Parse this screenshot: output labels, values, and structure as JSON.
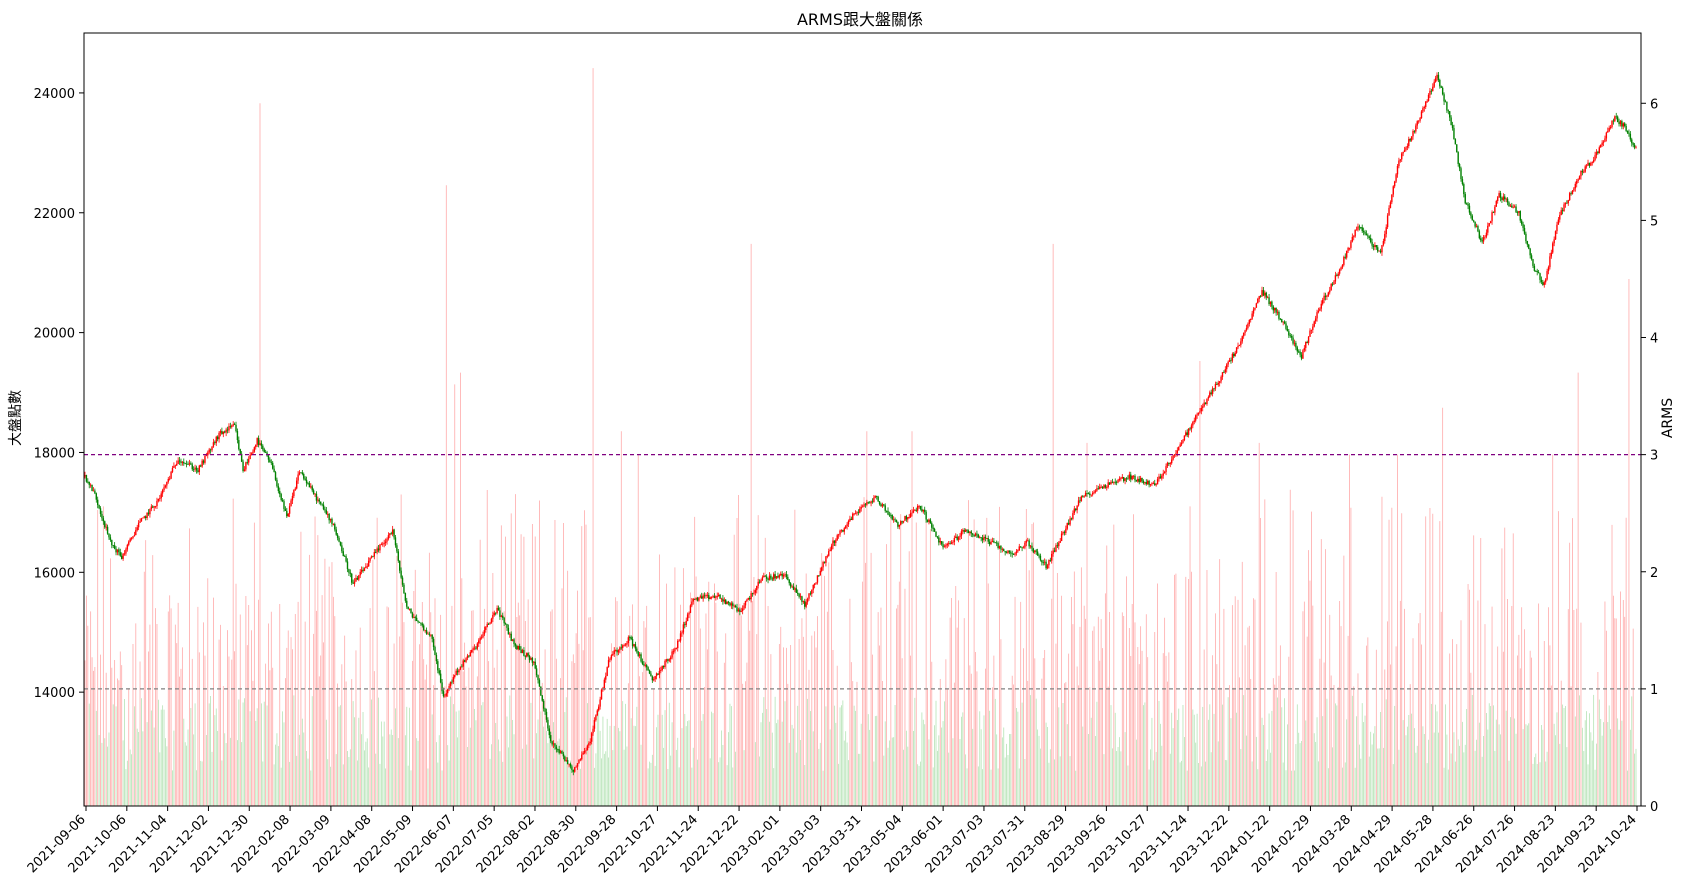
{
  "chart_data": {
    "type": "candlestick-with-bars",
    "title": "ARMS跟大盤關係",
    "ylabel_left": "大盤點數",
    "ylabel_right": "ARMS",
    "left_axis": {
      "ylim": [
        12100,
        25000
      ],
      "ticks": [
        "14000",
        "16000",
        "18000",
        "20000",
        "22000",
        "24000"
      ]
    },
    "right_axis": {
      "ylim": [
        0,
        6.6
      ],
      "ticks": [
        "0",
        "1",
        "2",
        "3",
        "4",
        "5",
        "6"
      ]
    },
    "x_tick_labels": [
      "2021-09-06",
      "2021-10-06",
      "2021-11-04",
      "2021-12-02",
      "2021-12-30",
      "2022-02-08",
      "2022-03-09",
      "2022-04-08",
      "2022-05-09",
      "2022-06-07",
      "2022-07-05",
      "2022-08-02",
      "2022-08-30",
      "2022-09-28",
      "2022-10-27",
      "2022-11-24",
      "2022-12-22",
      "2023-02-01",
      "2023-03-03",
      "2023-03-31",
      "2023-05-04",
      "2023-06-01",
      "2023-07-03",
      "2023-07-31",
      "2023-08-29",
      "2023-09-26",
      "2023-10-27",
      "2023-11-24",
      "2023-12-22",
      "2024-01-22",
      "2024-02-29",
      "2024-03-28",
      "2024-04-29",
      "2024-05-28",
      "2024-06-26",
      "2024-07-26",
      "2024-08-23",
      "2024-09-23",
      "2024-10-24"
    ],
    "reference_lines": [
      {
        "axis": "right",
        "value": 3,
        "color": "#800080",
        "style": "dashed"
      },
      {
        "axis": "right",
        "value": 1,
        "color": "#808080",
        "style": "dashed"
      }
    ],
    "index_anchors": [
      [
        0,
        17600
      ],
      [
        7,
        17300
      ],
      [
        18,
        16500
      ],
      [
        26,
        16250
      ],
      [
        38,
        16800
      ],
      [
        52,
        17200
      ],
      [
        66,
        17900
      ],
      [
        80,
        17700
      ],
      [
        95,
        18300
      ],
      [
        106,
        18450
      ],
      [
        112,
        17700
      ],
      [
        122,
        18200
      ],
      [
        132,
        17800
      ],
      [
        143,
        16900
      ],
      [
        152,
        17700
      ],
      [
        165,
        17200
      ],
      [
        176,
        16800
      ],
      [
        190,
        15800
      ],
      [
        202,
        16200
      ],
      [
        218,
        16700
      ],
      [
        228,
        15400
      ],
      [
        246,
        14900
      ],
      [
        254,
        13900
      ],
      [
        262,
        14300
      ],
      [
        278,
        14800
      ],
      [
        292,
        15400
      ],
      [
        304,
        14800
      ],
      [
        318,
        14500
      ],
      [
        330,
        13200
      ],
      [
        346,
        12700
      ],
      [
        358,
        13200
      ],
      [
        372,
        14600
      ],
      [
        386,
        14900
      ],
      [
        402,
        14200
      ],
      [
        418,
        14700
      ],
      [
        431,
        15550
      ],
      [
        448,
        15600
      ],
      [
        464,
        15350
      ],
      [
        480,
        15900
      ],
      [
        496,
        15950
      ],
      [
        510,
        15450
      ],
      [
        530,
        16500
      ],
      [
        546,
        17000
      ],
      [
        560,
        17250
      ],
      [
        576,
        16800
      ],
      [
        592,
        17100
      ],
      [
        608,
        16400
      ],
      [
        624,
        16700
      ],
      [
        642,
        16500
      ],
      [
        656,
        16300
      ],
      [
        668,
        16500
      ],
      [
        681,
        16100
      ],
      [
        694,
        16700
      ],
      [
        706,
        17250
      ],
      [
        722,
        17450
      ],
      [
        740,
        17600
      ],
      [
        758,
        17450
      ],
      [
        774,
        18050
      ],
      [
        790,
        18700
      ],
      [
        806,
        19300
      ],
      [
        820,
        19900
      ],
      [
        834,
        20700
      ],
      [
        848,
        20200
      ],
      [
        862,
        19600
      ],
      [
        874,
        20400
      ],
      [
        888,
        21000
      ],
      [
        902,
        21800
      ],
      [
        918,
        21300
      ],
      [
        930,
        22800
      ],
      [
        944,
        23500
      ],
      [
        958,
        24300
      ],
      [
        968,
        23500
      ],
      [
        978,
        22200
      ],
      [
        990,
        21500
      ],
      [
        1002,
        22300
      ],
      [
        1016,
        22000
      ],
      [
        1026,
        21100
      ],
      [
        1034,
        20800
      ],
      [
        1044,
        21900
      ],
      [
        1058,
        22600
      ],
      [
        1072,
        23000
      ],
      [
        1084,
        23600
      ],
      [
        1092,
        23400
      ],
      [
        1098,
        23100
      ]
    ],
    "arms_spikes": [
      [
        42,
        2.0
      ],
      [
        80,
        1.7
      ],
      [
        124,
        6.0
      ],
      [
        168,
        1.8
      ],
      [
        204,
        2.1
      ],
      [
        256,
        5.3
      ],
      [
        262,
        3.6
      ],
      [
        266,
        3.7
      ],
      [
        298,
        2.3
      ],
      [
        360,
        6.3
      ],
      [
        380,
        3.2
      ],
      [
        392,
        3.0
      ],
      [
        446,
        1.9
      ],
      [
        472,
        4.8
      ],
      [
        554,
        3.2
      ],
      [
        586,
        3.2
      ],
      [
        640,
        1.9
      ],
      [
        686,
        4.8
      ],
      [
        710,
        3.1
      ],
      [
        760,
        1.9
      ],
      [
        784,
        2.0
      ],
      [
        790,
        3.8
      ],
      [
        832,
        3.1
      ],
      [
        854,
        2.7
      ],
      [
        896,
        3.0
      ],
      [
        930,
        3.0
      ],
      [
        962,
        3.4
      ],
      [
        1004,
        2.2
      ],
      [
        1040,
        3.0
      ],
      [
        1058,
        3.7
      ],
      [
        1082,
        2.4
      ],
      [
        1094,
        4.5
      ]
    ],
    "series": [
      {
        "name": "大盤K線",
        "kind": "candlestick",
        "up_color": "#ff0000",
        "down_color": "#008000"
      },
      {
        "name": "ARMS",
        "kind": "bar",
        "color_above_1": "#ffaaaa",
        "color_below_1": "#b5e3b5"
      }
    ]
  }
}
